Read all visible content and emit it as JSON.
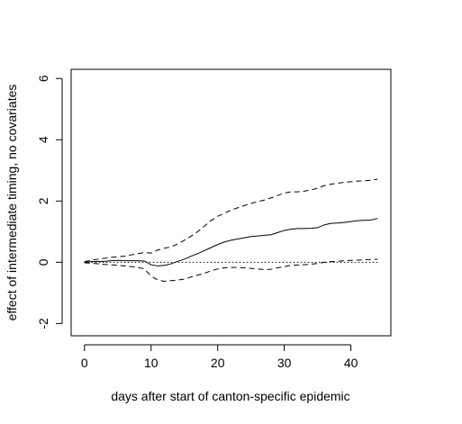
{
  "chart_data": {
    "type": "line",
    "title": "",
    "xlabel": "days after start of canton-specific epidemic",
    "ylabel": "effect of intermediate timing, no covariates",
    "xlim": [
      -2,
      46
    ],
    "ylim": [
      -2.4,
      6.3
    ],
    "x_ticks": [
      0,
      10,
      20,
      30,
      40
    ],
    "y_ticks": [
      -2,
      0,
      2,
      4,
      6
    ],
    "x_tick_labels": [
      "0",
      "10",
      "20",
      "30",
      "40"
    ],
    "y_tick_labels": [
      "-2",
      "0",
      "2",
      "4",
      "6"
    ],
    "grid": false,
    "legend": "none",
    "reference_line": {
      "y": 0,
      "style": "dotted",
      "x_from": 0,
      "x_to": 44
    },
    "series": [
      {
        "style": "solid",
        "points": [
          [
            0,
            0
          ],
          [
            1,
            0.02
          ],
          [
            2,
            0.03
          ],
          [
            3,
            0.03
          ],
          [
            4,
            0.05
          ],
          [
            5,
            0.06
          ],
          [
            6,
            0.05
          ],
          [
            7,
            0.05
          ],
          [
            8,
            0.05
          ],
          [
            9,
            0.04
          ],
          [
            10,
            -0.08
          ],
          [
            11,
            -0.12
          ],
          [
            12,
            -0.1
          ],
          [
            13,
            -0.05
          ],
          [
            14,
            0.03
          ],
          [
            15,
            0.1
          ],
          [
            16,
            0.2
          ],
          [
            17,
            0.28
          ],
          [
            18,
            0.38
          ],
          [
            19,
            0.48
          ],
          [
            20,
            0.58
          ],
          [
            21,
            0.66
          ],
          [
            22,
            0.72
          ],
          [
            23,
            0.76
          ],
          [
            24,
            0.8
          ],
          [
            25,
            0.84
          ],
          [
            26,
            0.86
          ],
          [
            27,
            0.88
          ],
          [
            28,
            0.9
          ],
          [
            29,
            0.97
          ],
          [
            30,
            1.04
          ],
          [
            31,
            1.08
          ],
          [
            32,
            1.1
          ],
          [
            33,
            1.1
          ],
          [
            34,
            1.11
          ],
          [
            35,
            1.13
          ],
          [
            36,
            1.22
          ],
          [
            37,
            1.27
          ],
          [
            38,
            1.28
          ],
          [
            39,
            1.3
          ],
          [
            40,
            1.33
          ],
          [
            41,
            1.36
          ],
          [
            42,
            1.37
          ],
          [
            43,
            1.38
          ],
          [
            44,
            1.43
          ]
        ]
      },
      {
        "style": "dashed",
        "points": [
          [
            0,
            0.02
          ],
          [
            1,
            0.07
          ],
          [
            2,
            0.1
          ],
          [
            3,
            0.13
          ],
          [
            4,
            0.16
          ],
          [
            5,
            0.18
          ],
          [
            6,
            0.2
          ],
          [
            7,
            0.24
          ],
          [
            8,
            0.28
          ],
          [
            9,
            0.32
          ],
          [
            10,
            0.3
          ],
          [
            11,
            0.4
          ],
          [
            12,
            0.46
          ],
          [
            13,
            0.5
          ],
          [
            14,
            0.6
          ],
          [
            15,
            0.72
          ],
          [
            16,
            0.85
          ],
          [
            17,
            1.0
          ],
          [
            18,
            1.18
          ],
          [
            19,
            1.36
          ],
          [
            20,
            1.5
          ],
          [
            21,
            1.6
          ],
          [
            22,
            1.7
          ],
          [
            23,
            1.78
          ],
          [
            24,
            1.85
          ],
          [
            25,
            1.92
          ],
          [
            26,
            1.98
          ],
          [
            27,
            2.03
          ],
          [
            28,
            2.1
          ],
          [
            29,
            2.18
          ],
          [
            30,
            2.26
          ],
          [
            31,
            2.3
          ],
          [
            32,
            2.3
          ],
          [
            33,
            2.32
          ],
          [
            34,
            2.36
          ],
          [
            35,
            2.42
          ],
          [
            36,
            2.5
          ],
          [
            37,
            2.55
          ],
          [
            38,
            2.58
          ],
          [
            39,
            2.61
          ],
          [
            40,
            2.63
          ],
          [
            41,
            2.65
          ],
          [
            42,
            2.66
          ],
          [
            43,
            2.68
          ],
          [
            44,
            2.71
          ]
        ]
      },
      {
        "style": "dashed",
        "points": [
          [
            0,
            -0.02
          ],
          [
            1,
            -0.03
          ],
          [
            2,
            -0.05
          ],
          [
            3,
            -0.07
          ],
          [
            4,
            -0.08
          ],
          [
            5,
            -0.1
          ],
          [
            6,
            -0.12
          ],
          [
            7,
            -0.14
          ],
          [
            8,
            -0.16
          ],
          [
            9,
            -0.22
          ],
          [
            10,
            -0.45
          ],
          [
            11,
            -0.58
          ],
          [
            12,
            -0.62
          ],
          [
            13,
            -0.6
          ],
          [
            14,
            -0.58
          ],
          [
            15,
            -0.55
          ],
          [
            16,
            -0.48
          ],
          [
            17,
            -0.42
          ],
          [
            18,
            -0.36
          ],
          [
            19,
            -0.28
          ],
          [
            20,
            -0.22
          ],
          [
            21,
            -0.18
          ],
          [
            22,
            -0.17
          ],
          [
            23,
            -0.17
          ],
          [
            24,
            -0.18
          ],
          [
            25,
            -0.2
          ],
          [
            26,
            -0.22
          ],
          [
            27,
            -0.24
          ],
          [
            28,
            -0.23
          ],
          [
            29,
            -0.18
          ],
          [
            30,
            -0.14
          ],
          [
            31,
            -0.1
          ],
          [
            32,
            -0.09
          ],
          [
            33,
            -0.08
          ],
          [
            34,
            -0.06
          ],
          [
            35,
            -0.04
          ],
          [
            36,
            0.0
          ],
          [
            37,
            0.02
          ],
          [
            38,
            0.03
          ],
          [
            39,
            0.05
          ],
          [
            40,
            0.06
          ],
          [
            41,
            0.07
          ],
          [
            42,
            0.08
          ],
          [
            43,
            0.09
          ],
          [
            44,
            0.1
          ]
        ]
      }
    ]
  }
}
